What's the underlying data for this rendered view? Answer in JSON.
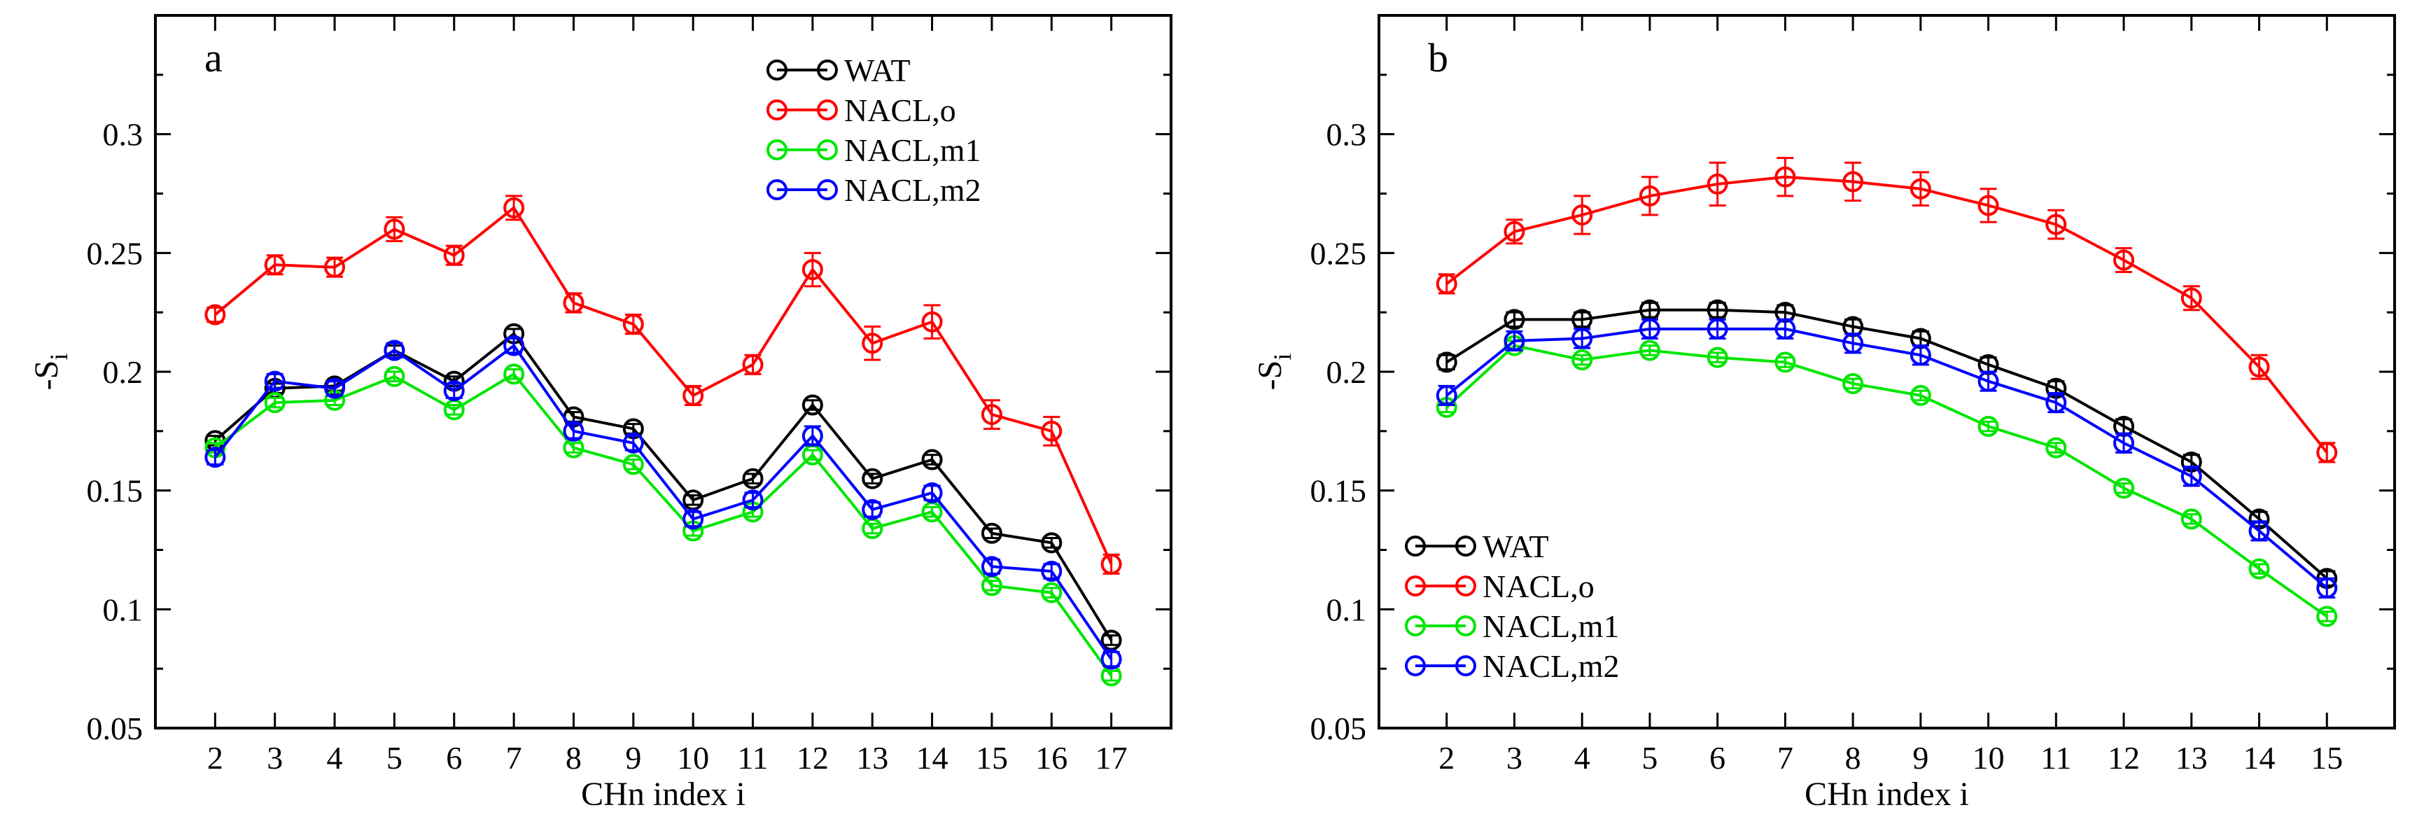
{
  "chart_data": [
    {
      "type": "line",
      "panel_label": "a",
      "xlabel": "CHn index i",
      "ylabel": {
        "main": "-S",
        "sub": "i"
      },
      "ylim": [
        0.05,
        0.35
      ],
      "yticks": [
        "0.05",
        "0.1",
        "0.15",
        "0.2",
        "0.25",
        "0.3"
      ],
      "x": [
        2,
        3,
        4,
        5,
        6,
        7,
        8,
        9,
        10,
        11,
        12,
        13,
        14,
        15,
        16,
        17
      ],
      "legend_position": "top-right",
      "series": [
        {
          "name": "WAT",
          "color": "#000000",
          "values": [
            0.171,
            0.193,
            0.194,
            0.209,
            0.196,
            0.216,
            0.181,
            0.176,
            0.146,
            0.155,
            0.186,
            0.155,
            0.163,
            0.132,
            0.128,
            0.087
          ],
          "errors": [
            0.002,
            0.002,
            0.002,
            0.002,
            0.002,
            0.002,
            0.002,
            0.002,
            0.002,
            0.002,
            0.002,
            0.002,
            0.002,
            0.002,
            0.002,
            0.002
          ]
        },
        {
          "name": "NACL,o",
          "color": "#ff0000",
          "values": [
            0.224,
            0.245,
            0.244,
            0.26,
            0.249,
            0.269,
            0.229,
            0.22,
            0.19,
            0.203,
            0.243,
            0.212,
            0.221,
            0.182,
            0.175,
            0.119
          ],
          "errors": [
            0.003,
            0.004,
            0.004,
            0.005,
            0.004,
            0.005,
            0.004,
            0.004,
            0.004,
            0.004,
            0.007,
            0.007,
            0.007,
            0.006,
            0.006,
            0.004
          ]
        },
        {
          "name": "NACL,m1",
          "color": "#00e600",
          "values": [
            0.168,
            0.187,
            0.188,
            0.198,
            0.184,
            0.199,
            0.168,
            0.161,
            0.133,
            0.141,
            0.165,
            0.134,
            0.141,
            0.11,
            0.107,
            0.072
          ],
          "errors": [
            0.002,
            0.002,
            0.002,
            0.002,
            0.002,
            0.002,
            0.002,
            0.002,
            0.002,
            0.002,
            0.002,
            0.002,
            0.002,
            0.002,
            0.002,
            0.002
          ]
        },
        {
          "name": "NACL,m2",
          "color": "#0000ff",
          "values": [
            0.164,
            0.196,
            0.193,
            0.209,
            0.192,
            0.211,
            0.175,
            0.17,
            0.138,
            0.146,
            0.173,
            0.142,
            0.149,
            0.118,
            0.116,
            0.079
          ],
          "errors": [
            0.003,
            0.003,
            0.003,
            0.003,
            0.003,
            0.003,
            0.003,
            0.003,
            0.003,
            0.003,
            0.004,
            0.003,
            0.003,
            0.003,
            0.003,
            0.003
          ]
        }
      ]
    },
    {
      "type": "line",
      "panel_label": "b",
      "xlabel": "CHn index i",
      "ylabel": {
        "main": "-S",
        "sub": "i"
      },
      "ylim": [
        0.05,
        0.35
      ],
      "yticks": [
        "0.05",
        "0.1",
        "0.15",
        "0.2",
        "0.25",
        "0.3"
      ],
      "x": [
        2,
        3,
        4,
        5,
        6,
        7,
        8,
        9,
        10,
        11,
        12,
        13,
        14,
        15
      ],
      "legend_position": "bottom-left",
      "series": [
        {
          "name": "WAT",
          "color": "#000000",
          "values": [
            0.204,
            0.222,
            0.222,
            0.226,
            0.226,
            0.225,
            0.219,
            0.214,
            0.203,
            0.193,
            0.177,
            0.162,
            0.138,
            0.113
          ],
          "errors": [
            0.003,
            0.003,
            0.003,
            0.003,
            0.003,
            0.003,
            0.003,
            0.003,
            0.003,
            0.003,
            0.003,
            0.003,
            0.003,
            0.003
          ]
        },
        {
          "name": "NACL,o",
          "color": "#ff0000",
          "values": [
            0.237,
            0.259,
            0.266,
            0.274,
            0.279,
            0.282,
            0.28,
            0.277,
            0.27,
            0.262,
            0.247,
            0.231,
            0.202,
            0.166
          ],
          "errors": [
            0.004,
            0.005,
            0.008,
            0.008,
            0.009,
            0.008,
            0.008,
            0.007,
            0.007,
            0.006,
            0.005,
            0.005,
            0.005,
            0.004
          ]
        },
        {
          "name": "NACL,m1",
          "color": "#00e600",
          "values": [
            0.185,
            0.211,
            0.205,
            0.209,
            0.206,
            0.204,
            0.195,
            0.19,
            0.177,
            0.168,
            0.151,
            0.138,
            0.117,
            0.097
          ],
          "errors": [
            0.002,
            0.002,
            0.002,
            0.002,
            0.002,
            0.002,
            0.002,
            0.002,
            0.002,
            0.002,
            0.002,
            0.002,
            0.002,
            0.002
          ]
        },
        {
          "name": "NACL,m2",
          "color": "#0000ff",
          "values": [
            0.19,
            0.213,
            0.214,
            0.218,
            0.218,
            0.218,
            0.212,
            0.207,
            0.196,
            0.187,
            0.17,
            0.156,
            0.133,
            0.109
          ],
          "errors": [
            0.004,
            0.004,
            0.004,
            0.004,
            0.004,
            0.004,
            0.004,
            0.004,
            0.004,
            0.004,
            0.004,
            0.004,
            0.004,
            0.004
          ]
        }
      ]
    }
  ]
}
